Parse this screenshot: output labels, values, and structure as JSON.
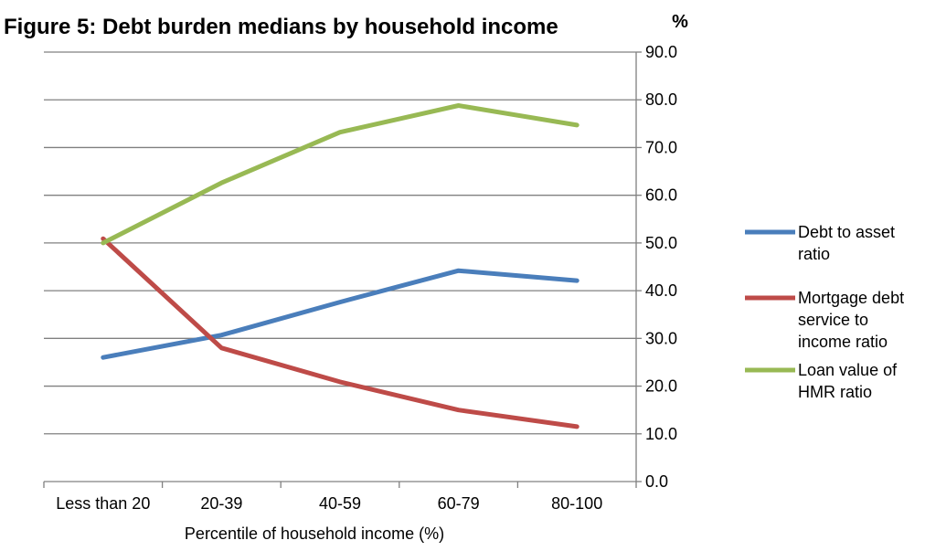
{
  "chart_data": {
    "type": "line",
    "title": "Figure 5: Debt burden medians by household income",
    "xlabel": "Percentile of household income (%)",
    "ylabel": "%",
    "categories": [
      "Less than 20",
      "20-39",
      "40-59",
      "60-79",
      "80-100"
    ],
    "ylim": [
      0,
      90
    ],
    "yticks": [
      "0.0",
      "10.0",
      "20.0",
      "30.0",
      "40.0",
      "50.0",
      "60.0",
      "70.0",
      "80.0",
      "90.0"
    ],
    "y_axis_side": "right",
    "grid": true,
    "legend_position": "right",
    "series": [
      {
        "name": "Debt to asset ratio",
        "legend_lines": [
          "Debt to asset",
          "ratio"
        ],
        "color": "#4a7ebb",
        "values": [
          26.0,
          30.7,
          37.6,
          44.2,
          42.1
        ]
      },
      {
        "name": "Mortgage debt service to income ratio",
        "legend_lines": [
          "Mortgage debt",
          "service to",
          "income ratio"
        ],
        "color": "#be4b48",
        "values": [
          50.9,
          28.0,
          20.9,
          15.0,
          11.5
        ]
      },
      {
        "name": "Loan value of HMR ratio",
        "legend_lines": [
          "Loan value of",
          "HMR ratio"
        ],
        "color": "#98b954",
        "values": [
          50.0,
          62.6,
          73.2,
          78.8,
          74.7
        ]
      }
    ]
  }
}
